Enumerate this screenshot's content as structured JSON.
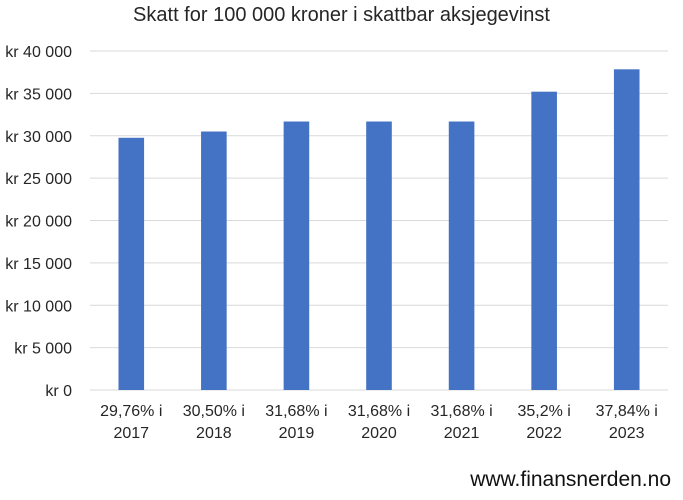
{
  "chart_data": {
    "type": "bar",
    "title": "Skatt for 100 000 kroner i skattbar aksjegevinst",
    "categories": [
      [
        "29,76% i",
        "2017"
      ],
      [
        "30,50% i",
        "2018"
      ],
      [
        "31,68% i",
        "2019"
      ],
      [
        "31,68% i",
        "2020"
      ],
      [
        "31,68% i",
        "2021"
      ],
      [
        "35,2% i",
        "2022"
      ],
      [
        "37,84% i",
        "2023"
      ]
    ],
    "values": [
      29760,
      30500,
      31680,
      31680,
      31680,
      35200,
      37840
    ],
    "ylim": [
      0,
      40000
    ],
    "yticks": [
      0,
      5000,
      10000,
      15000,
      20000,
      25000,
      30000,
      35000,
      40000
    ],
    "ytick_labels": [
      "kr 0",
      "kr 5 000",
      "kr 10 000",
      "kr 15 000",
      "kr 20 000",
      "kr 25 000",
      "kr 30 000",
      "kr 35 000",
      "kr 40 000"
    ],
    "grid": true,
    "legend": "none",
    "bar_color": "#4472C4",
    "grid_color": "#d9d9d9"
  },
  "footer": {
    "text": "www.finansnerden.no"
  }
}
